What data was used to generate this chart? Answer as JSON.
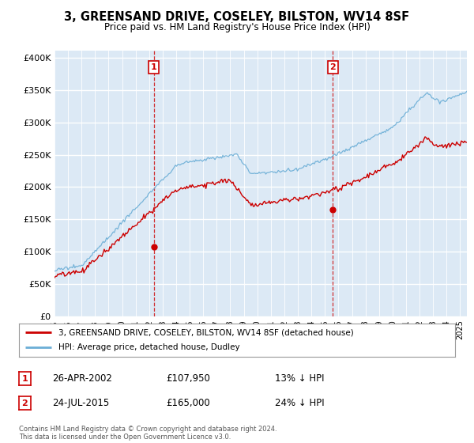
{
  "title": "3, GREENSAND DRIVE, COSELEY, BILSTON, WV14 8SF",
  "subtitle": "Price paid vs. HM Land Registry's House Price Index (HPI)",
  "ylabel_ticks": [
    "£0",
    "£50K",
    "£100K",
    "£150K",
    "£200K",
    "£250K",
    "£300K",
    "£350K",
    "£400K"
  ],
  "ylabel_values": [
    0,
    50000,
    100000,
    150000,
    200000,
    250000,
    300000,
    350000,
    400000
  ],
  "ylim": [
    0,
    410000
  ],
  "xlim_start": 1995.0,
  "xlim_end": 2025.5,
  "hpi_color": "#6baed6",
  "price_color": "#cc0000",
  "transaction1": {
    "date": "26-APR-2002",
    "price": 107950,
    "label": "1",
    "pct": "13%",
    "direction": "↓"
  },
  "transaction2": {
    "date": "24-JUL-2015",
    "price": 165000,
    "label": "2",
    "pct": "24%",
    "direction": "↓"
  },
  "legend_label1": "3, GREENSAND DRIVE, COSELEY, BILSTON, WV14 8SF (detached house)",
  "legend_label2": "HPI: Average price, detached house, Dudley",
  "footer": "Contains HM Land Registry data © Crown copyright and database right 2024.\nThis data is licensed under the Open Government Licence v3.0.",
  "background_color": "#ffffff",
  "plot_bg_color": "#dce9f5"
}
